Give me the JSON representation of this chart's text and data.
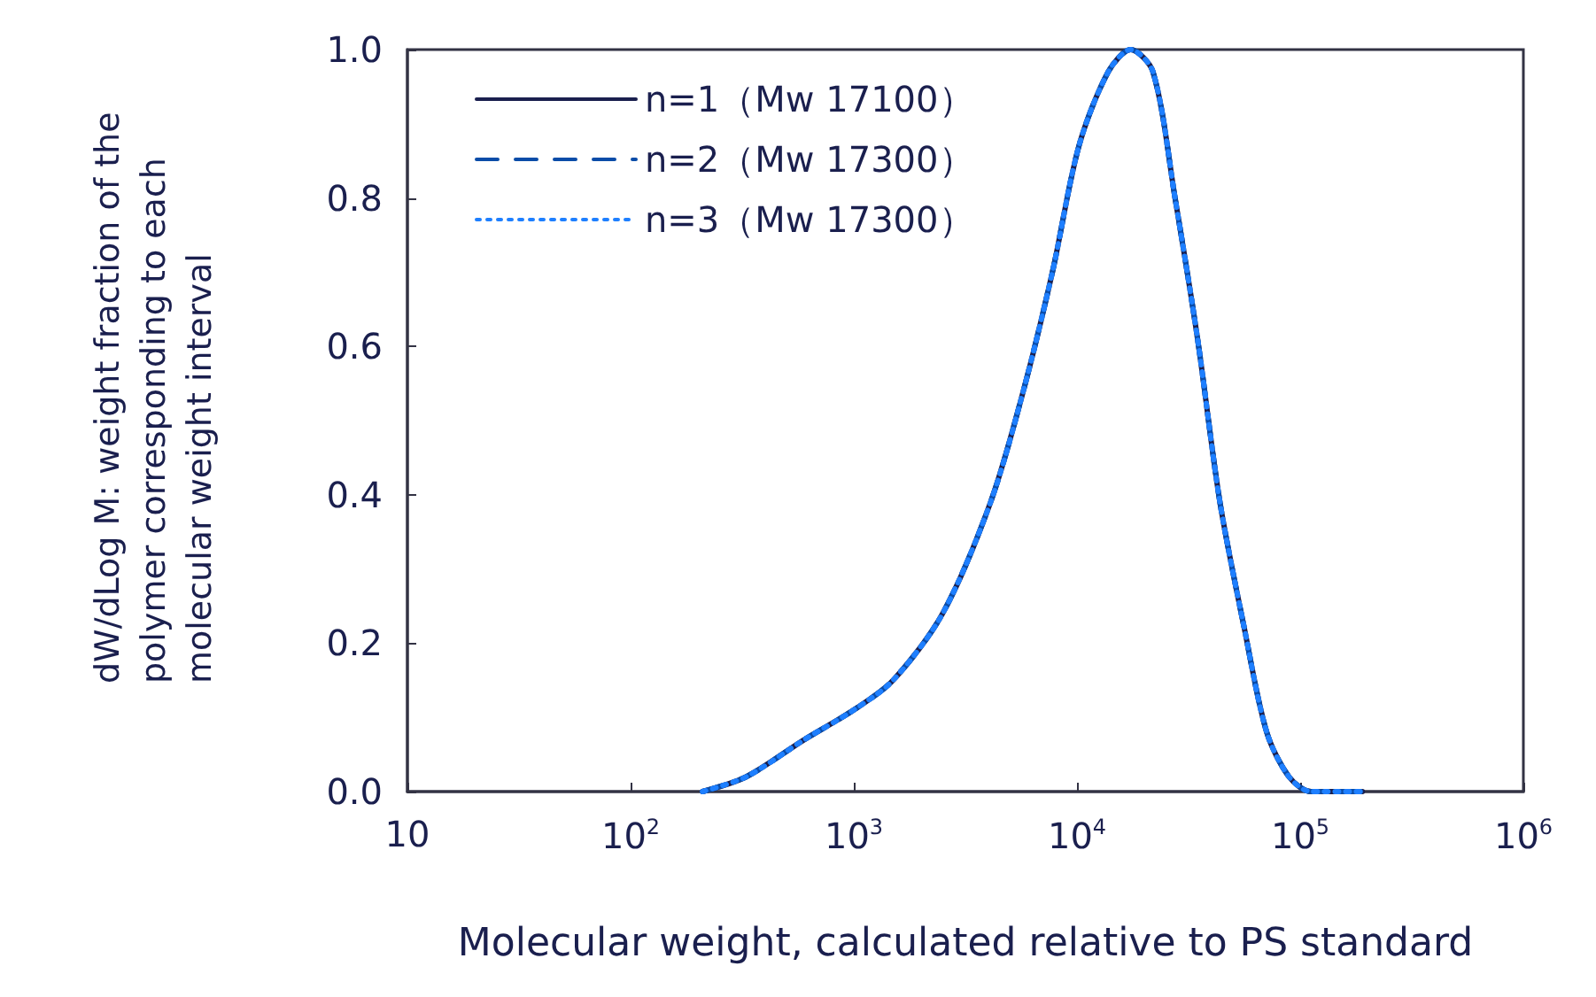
{
  "chart_data": {
    "type": "line",
    "xlabel": "Molecular weight, calculated relative to PS standard",
    "ylabel": "dW/dLog M: weight fraction of the polymer corresponding to each molecular weight interval",
    "log": "x",
    "grid": false,
    "legend": "top left",
    "marker": "none",
    "xlim": [
      10,
      1000000
    ],
    "xticks": [
      10,
      {
        "value": 100,
        "label": "10$^{2}$"
      },
      {
        "value": 1000,
        "label": "10$^{3}$"
      },
      {
        "value": 10000,
        "label": "10$^{4}$"
      },
      {
        "value": 100000,
        "label": "10$^{5}$"
      },
      {
        "value": 1000000,
        "label": "10$^{6}$"
      }
    ],
    "ylim": [
      0,
      1
    ],
    "yticks": [
      {
        "value": 0,
        "label": "0.0"
      },
      {
        "value": 0.2,
        "label": "0.2"
      },
      {
        "value": 0.4,
        "label": "0.4"
      },
      {
        "value": 0.6,
        "label": "0.6"
      },
      {
        "value": 0.8,
        "label": "0.8"
      },
      {
        "value": 1,
        "label": "1.0"
      }
    ],
    "x": [
      210,
      330,
      600,
      1000,
      1500,
      2500,
      4100,
      5750,
      7760,
      10200,
      13800,
      17400,
      21900,
      27500,
      34700,
      43700,
      56200,
      70800,
      89100,
      112000,
      190000
    ],
    "series": [
      {
        "name": "n=1（Mw 17100）",
        "color": "#1a1f4e",
        "line_style": "solid",
        "values": [
          0,
          0.02,
          0.07,
          0.11,
          0.15,
          0.24,
          0.39,
          0.54,
          0.7,
          0.87,
          0.97,
          1.0,
          0.97,
          0.8,
          0.61,
          0.39,
          0.22,
          0.08,
          0.02,
          0,
          0
        ]
      },
      {
        "name": "n=2（Mw 17300）",
        "color": "#0a4ca8",
        "line_style": "dashed",
        "values": [
          0,
          0.02,
          0.07,
          0.11,
          0.15,
          0.24,
          0.39,
          0.54,
          0.7,
          0.87,
          0.97,
          1.0,
          0.97,
          0.8,
          0.61,
          0.39,
          0.22,
          0.08,
          0.02,
          0,
          0
        ]
      },
      {
        "name": "n=3（Mw 17300）",
        "color": "#1e7fff",
        "line_style": "dotted",
        "values": [
          0,
          0.02,
          0.07,
          0.11,
          0.15,
          0.24,
          0.39,
          0.54,
          0.7,
          0.87,
          0.97,
          1.0,
          0.97,
          0.8,
          0.61,
          0.39,
          0.22,
          0.08,
          0.02,
          0,
          0
        ]
      }
    ]
  }
}
